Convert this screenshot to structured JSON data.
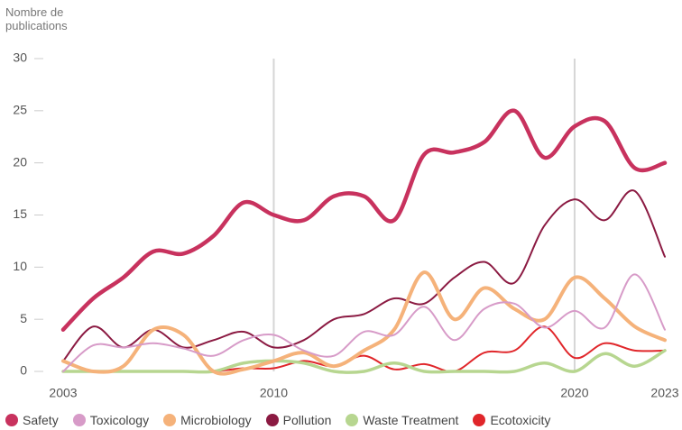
{
  "chart_data": {
    "type": "line",
    "ylabel": "Nombre de publications",
    "x": [
      2003,
      2004,
      2005,
      2006,
      2007,
      2008,
      2009,
      2010,
      2011,
      2012,
      2013,
      2014,
      2015,
      2016,
      2017,
      2018,
      2019,
      2020,
      2021,
      2022,
      2023
    ],
    "xlim": [
      2003,
      2023
    ],
    "xticks": [
      2003,
      2010,
      2020,
      2023
    ],
    "ylim": [
      0,
      30
    ],
    "yticks": [
      0,
      5,
      10,
      15,
      20,
      25,
      30
    ],
    "series": [
      {
        "name": "Safety",
        "color": "#c8325e",
        "line_width": 4.5,
        "values": [
          4,
          7,
          9,
          11.5,
          11.3,
          13,
          16.2,
          15,
          14.5,
          16.8,
          16.8,
          14.5,
          20.8,
          21,
          22,
          25,
          20.5,
          23.5,
          24,
          19.5,
          20
        ]
      },
      {
        "name": "Toxicology",
        "color": "#d79bc8",
        "line_width": 2,
        "values": [
          0,
          2.5,
          2.3,
          2.7,
          2.2,
          1.5,
          3,
          3.5,
          2,
          1.5,
          3.8,
          3.5,
          6.2,
          3,
          6,
          6.5,
          4.2,
          5.8,
          4.2,
          9.3,
          4
        ]
      },
      {
        "name": "Microbiology",
        "color": "#f5b27a",
        "line_width": 4,
        "values": [
          1,
          0,
          0.5,
          4,
          3.5,
          0,
          0.2,
          1,
          1.8,
          0.5,
          2,
          4,
          9.5,
          5,
          8,
          6,
          5,
          9,
          7,
          4.3,
          3
        ]
      },
      {
        "name": "Pollution",
        "color": "#8b1a42",
        "line_width": 2,
        "values": [
          1,
          4.3,
          2.3,
          4,
          2.3,
          3,
          3.8,
          2.3,
          3,
          5,
          5.5,
          7,
          6.5,
          9,
          10.5,
          8.5,
          14,
          16.5,
          14.5,
          17.3,
          11
        ]
      },
      {
        "name": "Waste Treatment",
        "color": "#b7d690",
        "line_width": 3.5,
        "values": [
          0,
          0,
          0,
          0,
          0,
          0,
          0.8,
          1,
          0.8,
          0,
          0,
          0.8,
          0,
          0,
          0,
          0,
          0.8,
          0,
          1.7,
          0.5,
          2
        ]
      },
      {
        "name": "Ecotoxicity",
        "color": "#e0262a",
        "line_width": 2,
        "values": [
          0,
          0,
          0,
          0,
          0,
          0,
          0.3,
          0.3,
          1,
          0.5,
          1.5,
          0.2,
          0.7,
          0,
          1.8,
          2,
          4.3,
          1.3,
          2.7,
          2,
          2
        ]
      }
    ]
  }
}
